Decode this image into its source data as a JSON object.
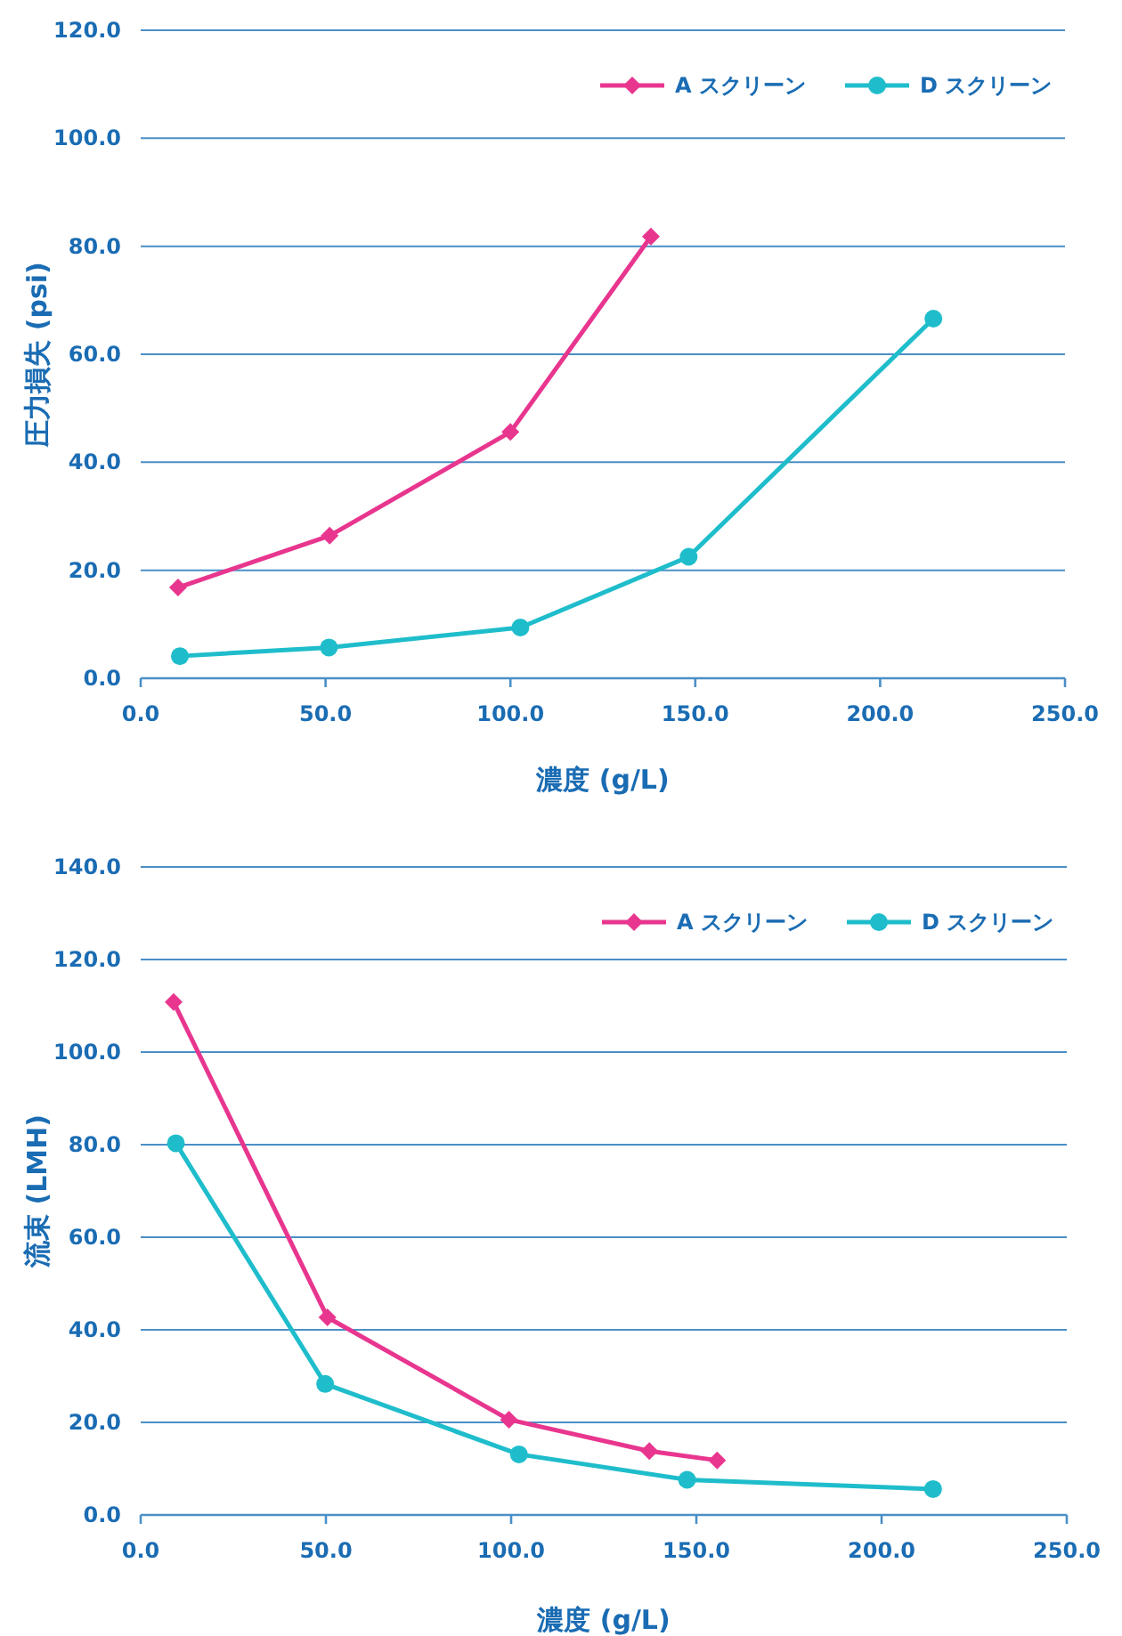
{
  "chart_data": [
    {
      "type": "line",
      "xlabel": "濃度 (g/L)",
      "ylabel": "圧力損失 (psi)",
      "xlim": [
        0,
        250
      ],
      "ylim": [
        0,
        120
      ],
      "xticks": [
        {
          "value": 0,
          "label": "0.0"
        },
        {
          "value": 50,
          "label": "50.0"
        },
        {
          "value": 100,
          "label": "100.0"
        },
        {
          "value": 150,
          "label": "150.0"
        },
        {
          "value": 200,
          "label": "200.0"
        },
        {
          "value": 250,
          "label": "250.0"
        }
      ],
      "yticks": [
        {
          "value": 0,
          "label": "0.0"
        },
        {
          "value": 20,
          "label": "20.0"
        },
        {
          "value": 40,
          "label": "40.0"
        },
        {
          "value": 60,
          "label": "60.0"
        },
        {
          "value": 80,
          "label": "80.0"
        },
        {
          "value": 100,
          "label": "100.0"
        },
        {
          "value": 120,
          "label": "120.0"
        }
      ],
      "grid": "y",
      "legend": "top right",
      "series": [
        {
          "name": "A スクリーン",
          "color": "#e8368f",
          "marker": "diamond",
          "x": [
            10.1,
            51.1,
            100.0,
            138.0
          ],
          "values": [
            16.8,
            26.4,
            45.6,
            81.8
          ]
        },
        {
          "name": "D スクリーン",
          "color": "#1fbdcb",
          "marker": "circle",
          "x": [
            10.6,
            50.9,
            102.7,
            148.2,
            214.4
          ],
          "values": [
            4.1,
            5.7,
            9.4,
            22.5,
            66.6
          ]
        }
      ]
    },
    {
      "type": "line",
      "xlabel": "濃度 (g/L)",
      "ylabel": "流束 (LMH)",
      "xlim": [
        0,
        250
      ],
      "ylim": [
        0,
        140
      ],
      "xticks": [
        {
          "value": 0,
          "label": "0.0"
        },
        {
          "value": 50,
          "label": "50.0"
        },
        {
          "value": 100,
          "label": "100.0"
        },
        {
          "value": 150,
          "label": "150.0"
        },
        {
          "value": 200,
          "label": "200.0"
        },
        {
          "value": 250,
          "label": "250.0"
        }
      ],
      "yticks": [
        {
          "value": 0,
          "label": "0.0"
        },
        {
          "value": 20,
          "label": "20.0"
        },
        {
          "value": 40,
          "label": "40.0"
        },
        {
          "value": 60,
          "label": "60.0"
        },
        {
          "value": 80,
          "label": "80.0"
        },
        {
          "value": 100,
          "label": "100.0"
        },
        {
          "value": 120,
          "label": "120.0"
        },
        {
          "value": 140,
          "label": "140.0"
        }
      ],
      "grid": "y",
      "legend": "top right",
      "series": [
        {
          "name": "A スクリーン",
          "color": "#e8368f",
          "marker": "diamond",
          "x": [
            8.9,
            50.4,
            99.4,
            137.3,
            155.6
          ],
          "values": [
            110.8,
            42.7,
            20.6,
            13.8,
            11.8
          ]
        },
        {
          "name": "D スクリーン",
          "color": "#1fbdcb",
          "marker": "circle",
          "x": [
            9.5,
            49.8,
            102.1,
            147.5,
            213.9
          ],
          "values": [
            80.3,
            28.3,
            13.1,
            7.6,
            5.6
          ]
        }
      ]
    }
  ]
}
